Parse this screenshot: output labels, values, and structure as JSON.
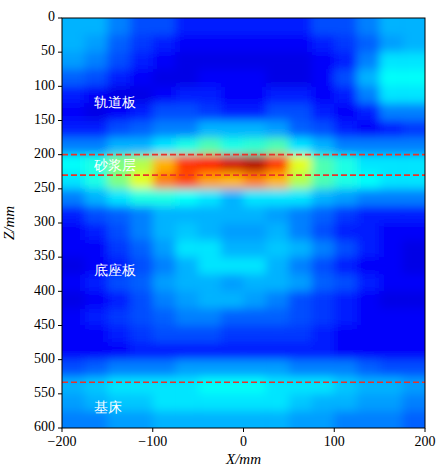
{
  "chart_data": {
    "type": "heatmap",
    "x_label": "X/mm",
    "y_label": "Z/mm",
    "xlim": [
      -200,
      200
    ],
    "xticks": [
      {
        "value": -200,
        "label": "−200"
      },
      {
        "value": -100,
        "label": "−100"
      },
      0,
      100,
      200
    ],
    "ylim": [
      0,
      600
    ],
    "yticks": [
      0,
      50,
      100,
      150,
      200,
      250,
      300,
      350,
      400,
      450,
      500,
      550,
      600
    ],
    "x": [
      -187.5,
      -162.5,
      -137.5,
      -112.5,
      -87.5,
      -62.5,
      -37.5,
      -12.5,
      12.5,
      37.5,
      62.5,
      87.5,
      112.5,
      137.5,
      162.5,
      187.5
    ],
    "y": [
      12.5,
      37.5,
      62.5,
      87.5,
      112.5,
      137.5,
      162.5,
      187.5,
      212.5,
      237.5,
      262.5,
      287.5,
      312.5,
      337.5,
      362.5,
      387.5,
      412.5,
      437.5,
      462.5,
      487.5,
      512.5,
      537.5,
      562.5,
      587.5
    ],
    "value_range": [
      0,
      1
    ],
    "values": [
      [
        0.3,
        0.3,
        0.25,
        0.2,
        0.2,
        0.15,
        0.15,
        0.15,
        0.15,
        0.15,
        0.15,
        0.2,
        0.2,
        0.25,
        0.3,
        0.3
      ],
      [
        0.3,
        0.28,
        0.22,
        0.18,
        0.15,
        0.12,
        0.12,
        0.12,
        0.12,
        0.12,
        0.12,
        0.15,
        0.18,
        0.22,
        0.28,
        0.3
      ],
      [
        0.28,
        0.25,
        0.2,
        0.15,
        0.12,
        0.1,
        0.1,
        0.1,
        0.1,
        0.1,
        0.1,
        0.12,
        0.15,
        0.25,
        0.35,
        0.35
      ],
      [
        0.22,
        0.2,
        0.15,
        0.12,
        0.1,
        0.1,
        0.12,
        0.12,
        0.12,
        0.1,
        0.1,
        0.12,
        0.2,
        0.3,
        0.38,
        0.38
      ],
      [
        0.15,
        0.12,
        0.1,
        0.1,
        0.12,
        0.15,
        0.15,
        0.12,
        0.12,
        0.15,
        0.15,
        0.12,
        0.15,
        0.25,
        0.35,
        0.35
      ],
      [
        0.12,
        0.1,
        0.12,
        0.15,
        0.2,
        0.2,
        0.18,
        0.15,
        0.15,
        0.2,
        0.2,
        0.15,
        0.12,
        0.15,
        0.25,
        0.25
      ],
      [
        0.15,
        0.15,
        0.2,
        0.22,
        0.25,
        0.25,
        0.3,
        0.3,
        0.3,
        0.28,
        0.22,
        0.2,
        0.15,
        0.12,
        0.15,
        0.18
      ],
      [
        0.25,
        0.25,
        0.3,
        0.3,
        0.35,
        0.4,
        0.45,
        0.4,
        0.42,
        0.45,
        0.35,
        0.3,
        0.25,
        0.25,
        0.25,
        0.25
      ],
      [
        0.38,
        0.4,
        0.5,
        0.55,
        0.7,
        0.82,
        0.85,
        0.92,
        0.95,
        0.82,
        0.6,
        0.45,
        0.4,
        0.35,
        0.35,
        0.35
      ],
      [
        0.35,
        0.4,
        0.5,
        0.6,
        0.75,
        0.8,
        0.72,
        0.7,
        0.75,
        0.7,
        0.55,
        0.45,
        0.4,
        0.38,
        0.35,
        0.35
      ],
      [
        0.25,
        0.3,
        0.35,
        0.4,
        0.4,
        0.38,
        0.35,
        0.3,
        0.35,
        0.35,
        0.35,
        0.3,
        0.28,
        0.25,
        0.25,
        0.25
      ],
      [
        0.15,
        0.2,
        0.22,
        0.25,
        0.3,
        0.3,
        0.3,
        0.3,
        0.3,
        0.28,
        0.25,
        0.22,
        0.18,
        0.15,
        0.15,
        0.15
      ],
      [
        0.12,
        0.15,
        0.2,
        0.25,
        0.3,
        0.32,
        0.3,
        0.28,
        0.28,
        0.3,
        0.25,
        0.2,
        0.15,
        0.15,
        0.12,
        0.12
      ],
      [
        0.12,
        0.12,
        0.18,
        0.22,
        0.28,
        0.35,
        0.35,
        0.3,
        0.3,
        0.32,
        0.3,
        0.25,
        0.2,
        0.15,
        0.12,
        0.1
      ],
      [
        0.1,
        0.12,
        0.15,
        0.2,
        0.25,
        0.3,
        0.35,
        0.35,
        0.35,
        0.3,
        0.25,
        0.2,
        0.15,
        0.12,
        0.12,
        0.1
      ],
      [
        0.12,
        0.15,
        0.2,
        0.22,
        0.28,
        0.3,
        0.3,
        0.28,
        0.3,
        0.3,
        0.28,
        0.22,
        0.2,
        0.15,
        0.12,
        0.12
      ],
      [
        0.1,
        0.12,
        0.15,
        0.2,
        0.25,
        0.28,
        0.3,
        0.3,
        0.28,
        0.25,
        0.2,
        0.18,
        0.15,
        0.12,
        0.1,
        0.1
      ],
      [
        0.12,
        0.15,
        0.18,
        0.2,
        0.22,
        0.25,
        0.25,
        0.22,
        0.22,
        0.22,
        0.2,
        0.18,
        0.15,
        0.12,
        0.12,
        0.12
      ],
      [
        0.12,
        0.12,
        0.15,
        0.18,
        0.2,
        0.2,
        0.2,
        0.18,
        0.18,
        0.18,
        0.18,
        0.15,
        0.12,
        0.12,
        0.12,
        0.12
      ],
      [
        0.12,
        0.12,
        0.12,
        0.15,
        0.15,
        0.15,
        0.15,
        0.15,
        0.15,
        0.15,
        0.15,
        0.15,
        0.12,
        0.12,
        0.12,
        0.12
      ],
      [
        0.2,
        0.22,
        0.25,
        0.25,
        0.25,
        0.28,
        0.28,
        0.28,
        0.28,
        0.28,
        0.25,
        0.25,
        0.25,
        0.22,
        0.2,
        0.2
      ],
      [
        0.3,
        0.32,
        0.35,
        0.35,
        0.35,
        0.35,
        0.38,
        0.38,
        0.38,
        0.35,
        0.35,
        0.35,
        0.32,
        0.3,
        0.3,
        0.28
      ],
      [
        0.28,
        0.3,
        0.32,
        0.32,
        0.35,
        0.35,
        0.35,
        0.35,
        0.35,
        0.35,
        0.32,
        0.3,
        0.3,
        0.28,
        0.28,
        0.25
      ],
      [
        0.25,
        0.25,
        0.28,
        0.28,
        0.3,
        0.3,
        0.3,
        0.3,
        0.3,
        0.3,
        0.28,
        0.28,
        0.25,
        0.25,
        0.25,
        0.22
      ]
    ],
    "boundaries": [
      200,
      230,
      533
    ],
    "annotations": [
      {
        "text": "轨道板",
        "x": -165,
        "y": 125
      },
      {
        "text": "砂浆层",
        "x": -165,
        "y": 217
      },
      {
        "text": "底座板",
        "x": -165,
        "y": 370
      },
      {
        "text": "基床",
        "x": -165,
        "y": 570
      }
    ]
  }
}
